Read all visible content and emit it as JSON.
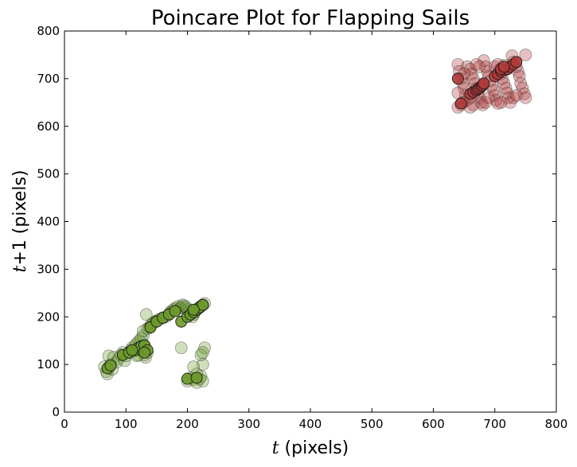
{
  "chart_data": {
    "type": "scatter",
    "title": "Poincare Plot for Flapping Sails",
    "xlabel": {
      "var": "t",
      "rest": " (pixels)"
    },
    "ylabel": {
      "var": "t",
      "op": "+1",
      "rest": " (pixels)"
    },
    "xlim": [
      0,
      800
    ],
    "ylim": [
      0,
      800
    ],
    "xticks": [
      "0",
      "100",
      "200",
      "300",
      "400",
      "500",
      "600",
      "700",
      "800"
    ],
    "yticks": [
      "0",
      "100",
      "200",
      "300",
      "400",
      "500",
      "600",
      "700",
      "800"
    ],
    "grid": false,
    "legend": "none",
    "series": [
      {
        "color": "#6b9a2a",
        "points": [
          [
            65,
            95
          ],
          [
            68,
            85
          ],
          [
            70,
            80
          ],
          [
            72,
            92
          ],
          [
            75,
            100
          ],
          [
            78,
            90
          ],
          [
            72,
            118
          ],
          [
            80,
            115
          ],
          [
            85,
            105
          ],
          [
            88,
            112
          ],
          [
            92,
            120
          ],
          [
            95,
            125
          ],
          [
            98,
            108
          ],
          [
            100,
            118
          ],
          [
            105,
            125
          ],
          [
            108,
            130
          ],
          [
            110,
            135
          ],
          [
            112,
            128
          ],
          [
            115,
            140
          ],
          [
            118,
            145
          ],
          [
            120,
            132
          ],
          [
            122,
            150
          ],
          [
            125,
            155
          ],
          [
            128,
            160
          ],
          [
            130,
            140
          ],
          [
            130,
            120
          ],
          [
            132,
            115
          ],
          [
            135,
            125
          ],
          [
            133,
            205
          ],
          [
            128,
            170
          ],
          [
            135,
            175
          ],
          [
            138,
            178
          ],
          [
            140,
            180
          ],
          [
            142,
            185
          ],
          [
            145,
            188
          ],
          [
            148,
            190
          ],
          [
            150,
            192
          ],
          [
            155,
            195
          ],
          [
            160,
            198
          ],
          [
            165,
            200
          ],
          [
            170,
            205
          ],
          [
            172,
            210
          ],
          [
            175,
            212
          ],
          [
            178,
            215
          ],
          [
            180,
            218
          ],
          [
            185,
            222
          ],
          [
            188,
            218
          ],
          [
            190,
            220
          ],
          [
            192,
            225
          ],
          [
            195,
            223
          ],
          [
            198,
            220
          ],
          [
            200,
            215
          ],
          [
            202,
            210
          ],
          [
            205,
            205
          ],
          [
            208,
            200
          ],
          [
            210,
            205
          ],
          [
            212,
            210
          ],
          [
            215,
            215
          ],
          [
            218,
            218
          ],
          [
            220,
            220
          ],
          [
            222,
            222
          ],
          [
            225,
            225
          ],
          [
            228,
            228
          ],
          [
            190,
            135
          ],
          [
            200,
            65
          ],
          [
            205,
            72
          ],
          [
            210,
            68
          ],
          [
            215,
            62
          ],
          [
            220,
            70
          ],
          [
            222,
            75
          ],
          [
            225,
            65
          ],
          [
            225,
            100
          ],
          [
            222,
            120
          ],
          [
            228,
            135
          ],
          [
            225,
            125
          ],
          [
            215,
            80
          ],
          [
            210,
            95
          ],
          [
            120,
            120
          ],
          [
            125,
            130
          ],
          [
            118,
            118
          ]
        ],
        "highlight": [
          [
            70,
            92
          ],
          [
            75,
            98
          ],
          [
            95,
            120
          ],
          [
            105,
            125
          ],
          [
            115,
            130
          ],
          [
            120,
            135
          ],
          [
            125,
            138
          ],
          [
            130,
            140
          ],
          [
            135,
            130
          ],
          [
            110,
            130
          ],
          [
            140,
            178
          ],
          [
            150,
            190
          ],
          [
            160,
            198
          ],
          [
            170,
            205
          ],
          [
            180,
            212
          ],
          [
            190,
            190
          ],
          [
            200,
            200
          ],
          [
            205,
            205
          ],
          [
            210,
            210
          ],
          [
            215,
            215
          ],
          [
            220,
            220
          ],
          [
            225,
            225
          ],
          [
            210,
            215
          ],
          [
            130,
            125
          ],
          [
            200,
            70
          ],
          [
            215,
            72
          ]
        ]
      },
      {
        "color": "#b03a3a",
        "points": [
          [
            640,
            730
          ],
          [
            642,
            715
          ],
          [
            645,
            700
          ],
          [
            648,
            690
          ],
          [
            650,
            680
          ],
          [
            652,
            665
          ],
          [
            655,
            655
          ],
          [
            645,
            645
          ],
          [
            640,
            640
          ],
          [
            648,
            650
          ],
          [
            655,
            725
          ],
          [
            660,
            720
          ],
          [
            662,
            710
          ],
          [
            665,
            700
          ],
          [
            668,
            690
          ],
          [
            670,
            680
          ],
          [
            672,
            670
          ],
          [
            675,
            660
          ],
          [
            678,
            650
          ],
          [
            680,
            645
          ],
          [
            682,
            738
          ],
          [
            685,
            725
          ],
          [
            688,
            715
          ],
          [
            690,
            705
          ],
          [
            692,
            695
          ],
          [
            695,
            685
          ],
          [
            698,
            675
          ],
          [
            700,
            665
          ],
          [
            702,
            655
          ],
          [
            705,
            648
          ],
          [
            708,
            720
          ],
          [
            710,
            710
          ],
          [
            712,
            700
          ],
          [
            715,
            690
          ],
          [
            718,
            680
          ],
          [
            720,
            670
          ],
          [
            722,
            660
          ],
          [
            725,
            650
          ],
          [
            728,
            748
          ],
          [
            730,
            735
          ],
          [
            735,
            725
          ],
          [
            738,
            715
          ],
          [
            740,
            705
          ],
          [
            742,
            690
          ],
          [
            745,
            680
          ],
          [
            748,
            668
          ],
          [
            750,
            660
          ],
          [
            750,
            750
          ],
          [
            660,
            640
          ],
          [
            665,
            645
          ],
          [
            700,
            725
          ],
          [
            705,
            730
          ],
          [
            715,
            728
          ],
          [
            720,
            720
          ],
          [
            685,
            650
          ],
          [
            690,
            660
          ],
          [
            660,
            660
          ],
          [
            640,
            670
          ],
          [
            650,
            710
          ],
          [
            670,
            730
          ],
          [
            675,
            725
          ],
          [
            710,
            650
          ],
          [
            730,
            660
          ],
          [
            735,
            665
          ]
        ],
        "highlight": [
          [
            645,
            648
          ],
          [
            660,
            668
          ],
          [
            665,
            672
          ],
          [
            670,
            675
          ],
          [
            672,
            678
          ],
          [
            675,
            680
          ],
          [
            678,
            683
          ],
          [
            680,
            686
          ],
          [
            682,
            690
          ],
          [
            700,
            705
          ],
          [
            705,
            710
          ],
          [
            710,
            715
          ],
          [
            715,
            718
          ],
          [
            720,
            720
          ],
          [
            725,
            725
          ],
          [
            730,
            730
          ],
          [
            735,
            735
          ],
          [
            710,
            720
          ],
          [
            715,
            725
          ],
          [
            640,
            700
          ]
        ]
      }
    ]
  }
}
